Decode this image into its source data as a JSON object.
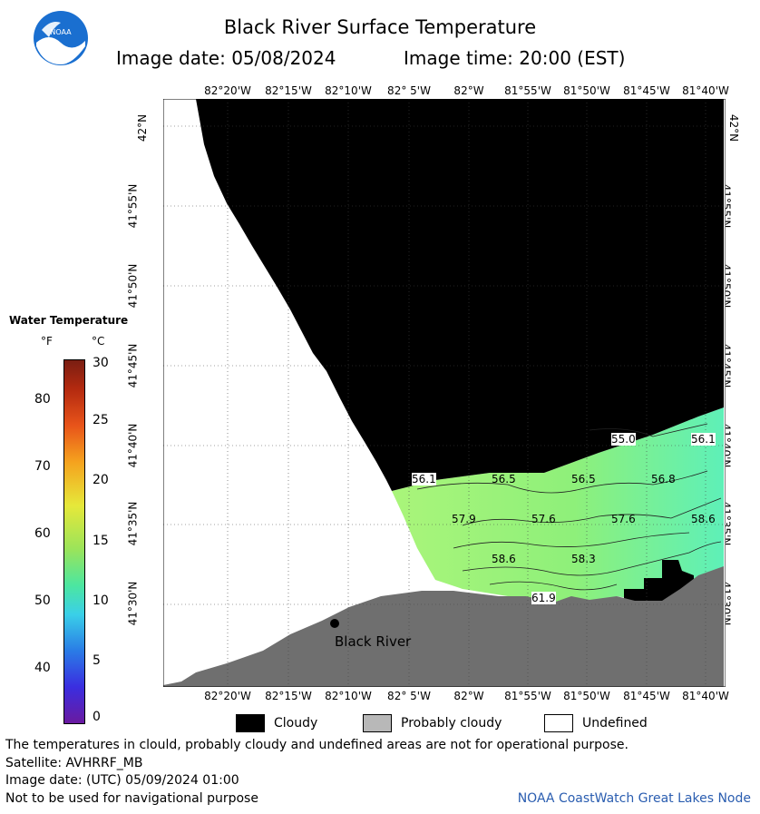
{
  "header": {
    "title": "Black River Surface Temperature",
    "image_date": "Image date: 05/08/2024",
    "image_time": "Image time: 20:00 (EST)",
    "logo_text": "NOAA"
  },
  "map": {
    "lon_labels": [
      "82°20'W",
      "82°15'W",
      "82°10'W",
      "82° 5'W",
      "82°W",
      "81°55'W",
      "81°50'W",
      "81°45'W",
      "81°40'W"
    ],
    "lat_labels": [
      "42°N",
      "41°55'N",
      "41°50'N",
      "41°45'N",
      "41°40'N",
      "41°35'N",
      "41°30'N"
    ],
    "place_label": "Black River",
    "temperatures": [
      "55.0",
      "56.1",
      "56.1",
      "56.5",
      "56.5",
      "56.8",
      "57.9",
      "57.6",
      "57.6",
      "58.6",
      "58.6",
      "58.3",
      "61.9"
    ],
    "colors": {
      "cloud": "#000000",
      "land": "#6f6f6f",
      "water_green": "#8ef07a",
      "water_cyan": "#5ef0b8",
      "undefined": "#ffffff"
    }
  },
  "legend": {
    "title": "Water Temperature",
    "unit_f": "°F",
    "unit_c": "°C",
    "ticks_f": [
      "80",
      "70",
      "60",
      "50",
      "40"
    ],
    "ticks_c": [
      "30",
      "25",
      "20",
      "15",
      "10",
      "5",
      "0"
    ]
  },
  "key": {
    "cloudy": "Cloudy",
    "probably_cloudy": "Probably cloudy",
    "undefined": "Undefined"
  },
  "footer": {
    "line1": "The temperatures in clould, probably cloudy and undefined areas are not for operational purpose.",
    "line2": "Satellite: AVHRRF_MB",
    "line3": "Image date: (UTC) 05/09/2024  01:00",
    "line4": "Not to be used for navigational purpose",
    "credit": "NOAA CoastWatch Great Lakes Node"
  }
}
